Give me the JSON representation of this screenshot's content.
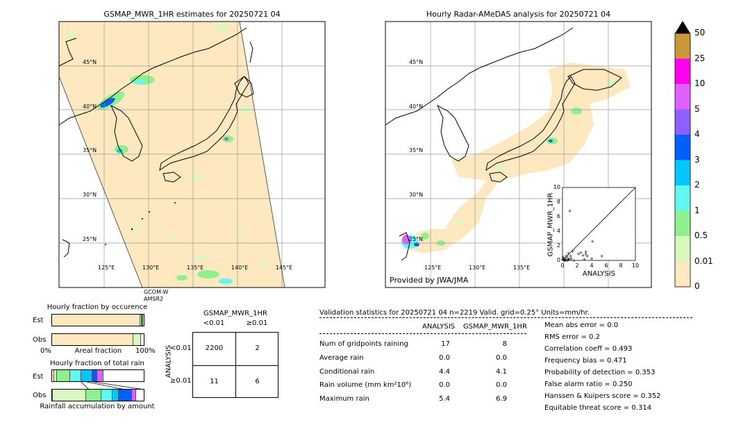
{
  "left_map": {
    "title": "GSMAP_MWR_1HR estimates for 20250721 04",
    "lat_labels": [
      "45°N",
      "40°N",
      "35°N",
      "30°N",
      "25°N"
    ],
    "lon_labels": [
      "125°E",
      "130°E",
      "135°E",
      "140°E",
      "145°E"
    ],
    "satellite_label_1": "GCOM-W",
    "satellite_label_2": "AMSR2"
  },
  "right_map": {
    "title": "Hourly Radar-AMeDAS analysis for 20250721 04",
    "lat_labels": [
      "45°N",
      "40°N",
      "35°N",
      "30°N",
      "25°N"
    ],
    "lon_labels": [
      "125°E",
      "130°E",
      "135°E"
    ],
    "credit": "Provided by JWA/JMA"
  },
  "colorbar": {
    "ticks": [
      "0",
      "0.01",
      "0.5",
      "1",
      "2",
      "3",
      "4",
      "5",
      "10",
      "25",
      "50"
    ],
    "colors": [
      "#fde8c0",
      "#d9f8c0",
      "#90f090",
      "#60f8f0",
      "#00c8ff",
      "#0060ff",
      "#9060ff",
      "#e060ff",
      "#ff00f0",
      "#c89838"
    ],
    "over_color": "#000000"
  },
  "chart_data": [
    {
      "type": "scatter",
      "name": "inset",
      "xlabel": "ANALYSIS",
      "ylabel": "GSMAP_MWR_1HR",
      "xlim": [
        0,
        10
      ],
      "ylim": [
        0,
        10
      ],
      "xticks": [
        "0",
        "2",
        "4",
        "6",
        "8",
        "10"
      ],
      "yticks": [
        "0",
        "2",
        "4",
        "6",
        "8",
        "10"
      ],
      "points": [
        [
          1.0,
          6.8
        ],
        [
          0.2,
          0.3
        ],
        [
          0.3,
          0.1
        ],
        [
          0.5,
          0.6
        ],
        [
          0.4,
          0.2
        ],
        [
          0.7,
          0.4
        ],
        [
          0.8,
          1.0
        ],
        [
          0.1,
          0.5
        ],
        [
          0.6,
          0.0
        ],
        [
          0.9,
          0.2
        ],
        [
          1.2,
          0.3
        ],
        [
          1.4,
          1.3
        ],
        [
          2.2,
          0.9
        ],
        [
          2.8,
          0.7
        ],
        [
          2.5,
          1.1
        ],
        [
          3.0,
          0.2
        ],
        [
          3.2,
          1.2
        ],
        [
          3.4,
          0.6
        ],
        [
          3.2,
          0.9
        ],
        [
          4.0,
          0.3
        ],
        [
          4.1,
          2.6
        ],
        [
          5.4,
          0.6
        ],
        [
          0.2,
          0.0
        ],
        [
          0.4,
          0.0
        ],
        [
          0.0,
          0.2
        ],
        [
          1.6,
          0.0
        ],
        [
          0.8,
          0.1
        ],
        [
          1.1,
          0.6
        ]
      ]
    },
    {
      "type": "bar",
      "name": "occurrence",
      "title": "Hourly fraction by occurence",
      "categories": [
        "Est",
        "Obs"
      ],
      "xlabel": "Areal fraction",
      "xtick_left": "0%",
      "xtick_right": "100%",
      "segments": [
        [
          {
            "fraction": 0.965,
            "color": "#fde8c0"
          },
          {
            "fraction": 0.01,
            "color": "#d9f8c0"
          },
          {
            "fraction": 0.02,
            "color": "#2a6a2a"
          }
        ],
        [
          {
            "fraction": 0.89,
            "color": "#fde8c0"
          },
          {
            "fraction": 0.08,
            "color": "#d9f8c0"
          }
        ]
      ]
    },
    {
      "type": "bar",
      "name": "total_rain",
      "title": "Hourly fraction of total rain",
      "categories": [
        "Est",
        "Obs"
      ],
      "xlabel": "Rainfall accumulation by amount",
      "segments": [
        [
          {
            "fraction": 0.02,
            "color": "#fde8c0"
          },
          {
            "fraction": 0.03,
            "color": "#d9f8c0"
          },
          {
            "fraction": 0.15,
            "color": "#90f090"
          },
          {
            "fraction": 0.12,
            "color": "#60f8f0"
          },
          {
            "fraction": 0.12,
            "color": "#00c8ff"
          },
          {
            "fraction": 0.05,
            "color": "#0060ff"
          },
          {
            "fraction": 0.07,
            "color": "#e060ff"
          }
        ],
        [
          {
            "fraction": 0.01,
            "color": "#fde8c0"
          },
          {
            "fraction": 0.36,
            "color": "#d9f8c0"
          },
          {
            "fraction": 0.17,
            "color": "#90f090"
          },
          {
            "fraction": 0.12,
            "color": "#60f8f0"
          },
          {
            "fraction": 0.07,
            "color": "#00c8ff"
          },
          {
            "fraction": 0.14,
            "color": "#0060ff"
          },
          {
            "fraction": 0.05,
            "color": "#e060ff"
          }
        ]
      ]
    }
  ],
  "contingency": {
    "title": "GSMAP_MWR_1HR",
    "col_low": "<0.01",
    "col_high": "≥0.01",
    "row_axis": "ANALYSIS",
    "row_low": "<0.01",
    "row_high": "≥0.01",
    "c11": "2200",
    "c12": "2",
    "c21": "11",
    "c22": "6"
  },
  "validation": {
    "header": "Validation statistics for 20250721 04  n=2219 Valid. grid=0.25° Units=mm/hr.",
    "col_analysis": "ANALYSIS",
    "col_gsmap": "GSMAP_MWR_1HR",
    "rows": [
      {
        "label": "Num of gridpoints raining",
        "analysis": "17",
        "gsmap": "8"
      },
      {
        "label": "Average rain",
        "analysis": "0.0",
        "gsmap": "0.0"
      },
      {
        "label": "Conditional rain",
        "analysis": "4.4",
        "gsmap": "4.1"
      },
      {
        "label": "Rain volume (mm km²10⁶)",
        "analysis": "0.0",
        "gsmap": "0.0"
      },
      {
        "label": "Maximum rain",
        "analysis": "5.4",
        "gsmap": "6.9"
      }
    ],
    "scores": [
      "Mean abs error =    0.0",
      "RMS error =    0.2",
      "Correlation coeff =  0.493",
      "Frequency bias =  0.471",
      "Probability of detection =  0.353",
      "False alarm ratio =  0.250",
      "Hanssen & Kuipers score =  0.352",
      "Equitable threat score =  0.314"
    ]
  }
}
